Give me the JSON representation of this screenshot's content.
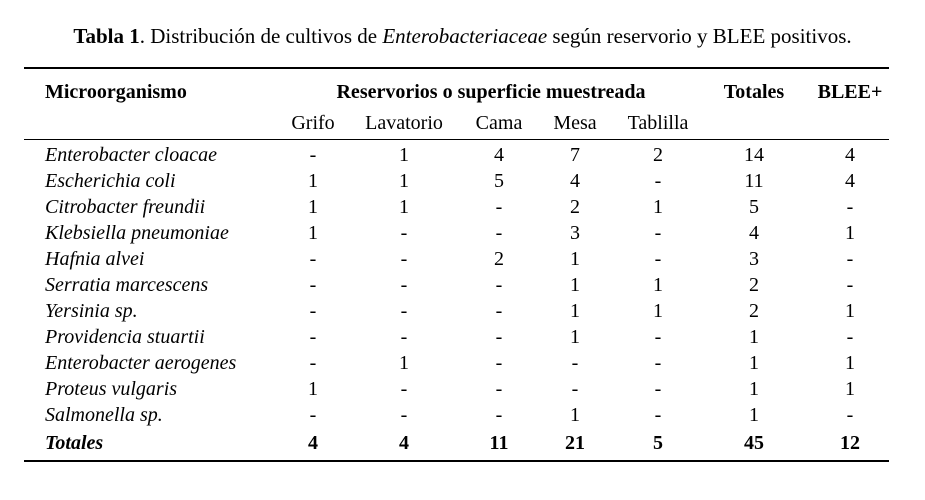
{
  "caption": {
    "lead": "Tabla 1",
    "text_before": ". Distribución de cultivos de ",
    "italic": "Enterobacteriaceae",
    "text_after": " según reservorio y BLEE positivos."
  },
  "headers": {
    "organism": "Microorganismo",
    "reservoirs": "Reservorios o superficie muestreada",
    "totals": "Totales",
    "esbl": "BLEE+",
    "subcolumns": [
      "Grifo",
      "Lavatorio",
      "Cama",
      "Mesa",
      "Tablilla"
    ]
  },
  "rows": [
    {
      "organism": "Enterobacter cloacae",
      "values": [
        "-",
        "1",
        "4",
        "7",
        "2",
        "14",
        "4"
      ]
    },
    {
      "organism": "Escherichia coli",
      "values": [
        "1",
        "1",
        "5",
        "4",
        "-",
        "11",
        "4"
      ]
    },
    {
      "organism": "Citrobacter freundii",
      "values": [
        "1",
        "1",
        "-",
        "2",
        "1",
        "5",
        "-"
      ]
    },
    {
      "organism": "Klebsiella pneumoniae",
      "values": [
        "1",
        "-",
        "-",
        "3",
        "-",
        "4",
        "1"
      ]
    },
    {
      "organism": "Hafnia alvei",
      "values": [
        "-",
        "-",
        "2",
        "1",
        "-",
        "3",
        "-"
      ]
    },
    {
      "organism": "Serratia marcescens",
      "values": [
        "-",
        "-",
        "-",
        "1",
        "1",
        "2",
        "-"
      ]
    },
    {
      "organism": "Yersinia sp.",
      "values": [
        "-",
        "-",
        "-",
        "1",
        "1",
        "2",
        "1"
      ]
    },
    {
      "organism": "Providencia stuartii",
      "values": [
        "-",
        "-",
        "-",
        "1",
        "-",
        "1",
        "-"
      ]
    },
    {
      "organism": "Enterobacter aerogenes",
      "values": [
        "-",
        "1",
        "-",
        "-",
        "-",
        "1",
        "1"
      ]
    },
    {
      "organism": "Proteus vulgaris",
      "values": [
        "1",
        "-",
        "-",
        "-",
        "-",
        "1",
        "1"
      ]
    },
    {
      "organism": "Salmonella sp.",
      "values": [
        "-",
        "-",
        "-",
        "1",
        "-",
        "1",
        "-"
      ]
    }
  ],
  "totals_row": {
    "organism": "Totales",
    "values": [
      "4",
      "4",
      "11",
      "21",
      "5",
      "45",
      "12"
    ]
  }
}
